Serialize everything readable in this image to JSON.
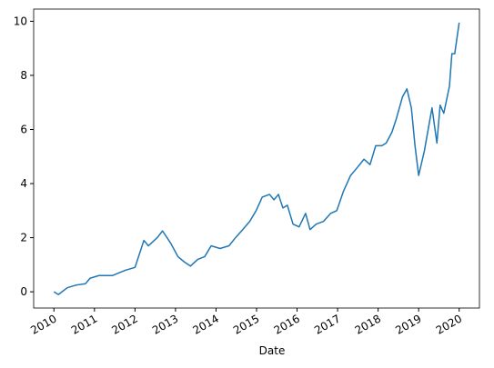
{
  "chart_data": {
    "type": "line",
    "xlabel": "Date",
    "x": [
      2010.0,
      2010.11,
      2010.33,
      2010.55,
      2010.78,
      2010.89,
      2011.11,
      2011.44,
      2011.77,
      2012.0,
      2012.22,
      2012.33,
      2012.55,
      2012.68,
      2012.88,
      2013.06,
      2013.22,
      2013.37,
      2013.55,
      2013.72,
      2013.88,
      2014.1,
      2014.32,
      2014.48,
      2014.66,
      2014.83,
      2014.99,
      2015.14,
      2015.32,
      2015.43,
      2015.54,
      2015.65,
      2015.76,
      2015.9,
      2016.05,
      2016.21,
      2016.32,
      2016.47,
      2016.65,
      2016.83,
      2016.98,
      2017.14,
      2017.32,
      2017.49,
      2017.65,
      2017.8,
      2017.94,
      2018.09,
      2018.2,
      2018.34,
      2018.45,
      2018.6,
      2018.71,
      2018.82,
      2018.91,
      2019.0,
      2019.14,
      2019.27,
      2019.33,
      2019.45,
      2019.53,
      2019.62,
      2019.76,
      2019.82,
      2019.89,
      2020.0
    ],
    "values": [
      0,
      -0.1,
      0.15,
      0.25,
      0.3,
      0.5,
      0.6,
      0.6,
      0.8,
      0.9,
      1.9,
      1.7,
      2.0,
      2.25,
      1.8,
      1.3,
      1.1,
      0.95,
      1.2,
      1.3,
      1.7,
      1.6,
      1.7,
      2.0,
      2.3,
      2.6,
      3.0,
      3.5,
      3.6,
      3.4,
      3.6,
      3.1,
      3.2,
      2.5,
      2.4,
      2.9,
      2.3,
      2.5,
      2.6,
      2.9,
      3.0,
      3.7,
      4.3,
      4.6,
      4.9,
      4.7,
      5.4,
      5.4,
      5.5,
      5.9,
      6.4,
      7.2,
      7.5,
      6.8,
      5.4,
      4.3,
      5.2,
      6.3,
      6.8,
      5.5,
      6.9,
      6.6,
      7.6,
      8.8,
      8.8,
      9.95
    ],
    "color": "#1f77b4",
    "xlim": [
      2009.5,
      2020.5
    ],
    "xticks": [
      2010,
      2011,
      2012,
      2013,
      2014,
      2015,
      2016,
      2017,
      2018,
      2019,
      2020
    ],
    "ylim": [
      -0.6,
      10.45
    ],
    "yticks": [
      0,
      2,
      4,
      6,
      8,
      10
    ],
    "grid": false
  }
}
